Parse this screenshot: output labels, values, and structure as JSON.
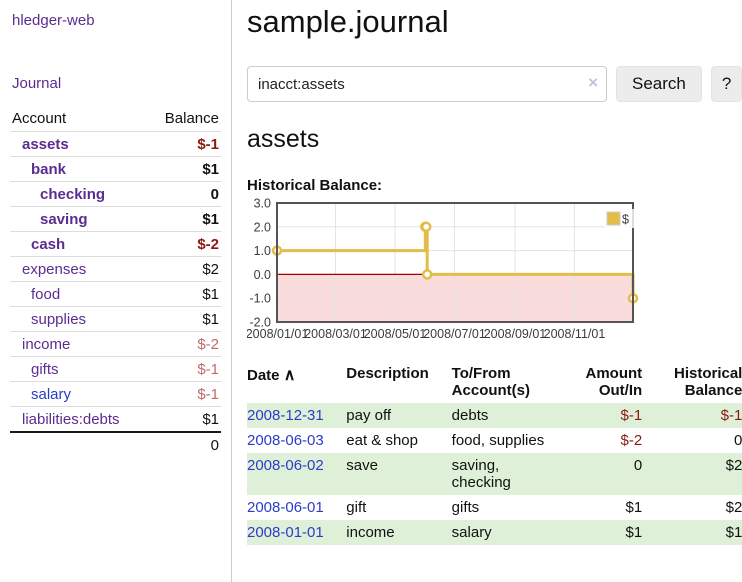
{
  "app": {
    "brand": "hledger-web",
    "nav_journal": "Journal"
  },
  "colors": {
    "link_purple": "#5b2d90",
    "link_blue": "#2b3cc8",
    "negative_strong": "#8c1a11",
    "negative_muted": "#bf6b6b",
    "striped_row_green": "#dff0d8",
    "chart_line_gold": "#e3bd49"
  },
  "sidebar": {
    "accounts_header": {
      "account": "Account",
      "balance": "Balance"
    },
    "accounts": [
      {
        "name": "assets",
        "indent": 1,
        "balance": "$-1",
        "in_acct": true,
        "balance_tone": "neg-strong",
        "link": "purple"
      },
      {
        "name": "bank",
        "indent": 2,
        "balance": "$1",
        "in_acct": true,
        "balance_tone": "",
        "link": "purple"
      },
      {
        "name": "checking",
        "indent": 3,
        "balance": "0",
        "in_acct": true,
        "balance_tone": "",
        "link": "purple"
      },
      {
        "name": "saving",
        "indent": 3,
        "balance": "$1",
        "in_acct": true,
        "balance_tone": "",
        "link": "purple"
      },
      {
        "name": "cash",
        "indent": 2,
        "balance": "$-2",
        "in_acct": true,
        "balance_tone": "neg-strong",
        "link": "purple"
      },
      {
        "name": "expenses",
        "indent": 1,
        "balance": "$2",
        "in_acct": false,
        "balance_tone": "",
        "link": "purple"
      },
      {
        "name": "food",
        "indent": 2,
        "balance": "$1",
        "in_acct": false,
        "balance_tone": "",
        "link": "purple"
      },
      {
        "name": "supplies",
        "indent": 2,
        "balance": "$1",
        "in_acct": false,
        "balance_tone": "",
        "link": "purple"
      },
      {
        "name": "income",
        "indent": 1,
        "balance": "$-2",
        "in_acct": false,
        "balance_tone": "neg-muted",
        "link": "purple"
      },
      {
        "name": "gifts",
        "indent": 2,
        "balance": "$-1",
        "in_acct": false,
        "balance_tone": "neg-muted",
        "link": "purple"
      },
      {
        "name": "salary",
        "indent": 2,
        "balance": "$-1",
        "in_acct": false,
        "balance_tone": "neg-muted",
        "link": "blue"
      },
      {
        "name": "liabilities:debts",
        "indent": 1,
        "balance": "$1",
        "in_acct": false,
        "balance_tone": "",
        "link": "purple"
      }
    ],
    "total": "0"
  },
  "header": {
    "title": "sample.journal"
  },
  "search": {
    "value": "inacct:assets",
    "clear_icon": "×",
    "button_label": "Search",
    "help_label": "?"
  },
  "account_page": {
    "heading": "assets",
    "chart_title": "Historical Balance:"
  },
  "chart_data": {
    "type": "line",
    "step": true,
    "title": "Historical Balance:",
    "series": [
      {
        "name": "$",
        "color": "#e3bd49",
        "points": [
          [
            "2008/01/01",
            1.0
          ],
          [
            "2008/06/01",
            2.0
          ],
          [
            "2008/06/02",
            2.0
          ],
          [
            "2008/06/03",
            0.0
          ],
          [
            "2008/12/31",
            -1.0
          ]
        ]
      }
    ],
    "xlim": [
      "2008/01/01",
      "2008/12/31"
    ],
    "ylim": [
      -2.0,
      3.0
    ],
    "yticks": [
      3.0,
      2.0,
      1.0,
      0.0,
      -1.0,
      -2.0
    ],
    "xticks": [
      "2008/01/01",
      "2008/03/01",
      "2008/05/01",
      "2008/07/01",
      "2008/09/01",
      "2008/11/01"
    ],
    "grid": true,
    "legend_position": "top-right",
    "negative_region_color": "#fbdcdc",
    "zero_line_color": "#a40000"
  },
  "register": {
    "sort_indicator": "∧",
    "columns": {
      "date": "Date",
      "description": "Description",
      "account": "To/From\nAccount(s)",
      "amount": "Amount\nOut/In",
      "balance": "Historical\nBalance"
    },
    "rows": [
      {
        "date": "2008-12-31",
        "description": "pay off",
        "accounts": "debts",
        "amount": "$-1",
        "amount_tone": "neg-strong",
        "balance": "$-1",
        "balance_tone": "neg-strong"
      },
      {
        "date": "2008-06-03",
        "description": "eat & shop",
        "accounts": "food, supplies",
        "amount": "$-2",
        "amount_tone": "neg-strong",
        "balance": "0",
        "balance_tone": ""
      },
      {
        "date": "2008-06-02",
        "description": "save",
        "accounts": "saving, checking",
        "amount": "0",
        "amount_tone": "",
        "balance": "$2",
        "balance_tone": ""
      },
      {
        "date": "2008-06-01",
        "description": "gift",
        "accounts": "gifts",
        "amount": "$1",
        "amount_tone": "",
        "balance": "$2",
        "balance_tone": ""
      },
      {
        "date": "2008-01-01",
        "description": "income",
        "accounts": "salary",
        "amount": "$1",
        "amount_tone": "",
        "balance": "$1",
        "balance_tone": ""
      }
    ]
  }
}
